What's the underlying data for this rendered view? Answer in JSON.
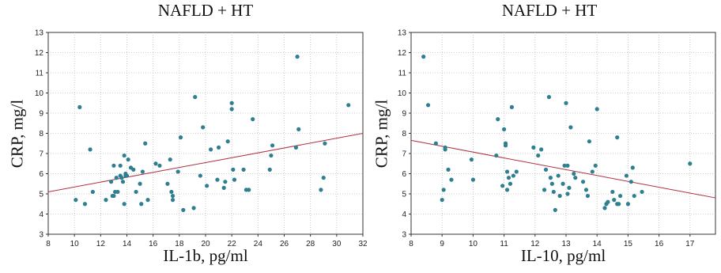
{
  "chart_data": [
    {
      "type": "scatter",
      "title": "NAFLD + HT",
      "xlabel": "IL-1b, pg/ml",
      "ylabel": "CRP, mg/l",
      "xlim": [
        8,
        32
      ],
      "ylim": [
        3,
        13
      ],
      "xticks": [
        8,
        10,
        12,
        14,
        16,
        18,
        20,
        22,
        24,
        26,
        28,
        30,
        32
      ],
      "yticks": [
        3,
        4,
        5,
        6,
        7,
        8,
        9,
        10,
        11,
        12,
        13
      ],
      "grid": "dotted",
      "point_color": "#2e7f8f",
      "trend_color": "#b03040",
      "trendline": {
        "x": [
          8,
          32
        ],
        "y": [
          5.1,
          8.0
        ]
      },
      "x": [
        10.1,
        10.4,
        10.8,
        11.2,
        11.4,
        12.4,
        12.8,
        12.9,
        13.0,
        13.0,
        13.1,
        13.2,
        13.3,
        13.5,
        13.5,
        13.6,
        13.7,
        13.8,
        13.8,
        13.9,
        13.9,
        14.0,
        14.1,
        14.3,
        14.5,
        14.7,
        15.0,
        15.1,
        15.2,
        15.4,
        15.6,
        16.2,
        16.5,
        17.1,
        17.3,
        17.4,
        17.5,
        17.5,
        17.9,
        18.1,
        18.3,
        19.1,
        19.2,
        19.6,
        19.8,
        20.1,
        20.4,
        20.9,
        21.0,
        21.4,
        21.5,
        21.7,
        22.0,
        22.0,
        22.1,
        22.2,
        22.9,
        23.1,
        23.3,
        23.6,
        24.9,
        25.0,
        25.1,
        26.9,
        27.0,
        27.1,
        28.8,
        29.0,
        29.1,
        30.9
      ],
      "y": [
        4.7,
        9.3,
        4.5,
        7.2,
        5.1,
        4.7,
        5.6,
        4.9,
        6.4,
        4.9,
        5.1,
        5.8,
        5.1,
        6.4,
        5.9,
        5.8,
        5.6,
        6.9,
        4.5,
        5.9,
        6.0,
        5.9,
        6.7,
        6.3,
        6.2,
        5.1,
        5.5,
        4.5,
        6.1,
        7.5,
        4.7,
        6.5,
        6.4,
        5.5,
        6.7,
        5.1,
        4.9,
        4.7,
        6.1,
        7.8,
        4.2,
        4.3,
        9.8,
        5.9,
        8.3,
        5.4,
        7.2,
        5.7,
        7.3,
        5.3,
        5.6,
        7.6,
        9.5,
        9.2,
        6.2,
        5.7,
        6.2,
        5.2,
        5.2,
        8.7,
        6.2,
        6.9,
        7.4,
        7.3,
        11.8,
        8.2,
        5.2,
        5.8,
        7.5,
        9.4
      ]
    },
    {
      "type": "scatter",
      "title": "NAFLD + HT",
      "xlabel": "IL-10, pg/ml",
      "ylabel": "CRP, mg/l",
      "xlim": [
        8,
        18
      ],
      "ylim": [
        3,
        13
      ],
      "xticks": [
        8,
        9,
        10,
        11,
        12,
        13,
        14,
        15,
        16,
        17
      ],
      "yticks": [
        3,
        4,
        5,
        6,
        7,
        8,
        9,
        10,
        11,
        12,
        13
      ],
      "grid": "dotted",
      "point_color": "#2e7f8f",
      "trend_color": "#b03040",
      "trendline": {
        "x": [
          8,
          18
        ],
        "y": [
          7.65,
          4.75
        ]
      },
      "x": [
        8.4,
        8.55,
        8.8,
        9.0,
        9.05,
        9.1,
        9.1,
        9.2,
        9.3,
        9.95,
        10.0,
        10.75,
        10.8,
        10.95,
        11.0,
        11.05,
        11.05,
        11.1,
        11.1,
        11.15,
        11.2,
        11.25,
        11.3,
        11.4,
        11.95,
        12.1,
        12.2,
        12.3,
        12.35,
        12.45,
        12.5,
        12.55,
        12.6,
        12.65,
        12.75,
        12.8,
        12.9,
        12.95,
        13.0,
        13.05,
        13.05,
        13.1,
        13.15,
        13.25,
        13.3,
        13.55,
        13.65,
        13.7,
        13.75,
        13.85,
        13.95,
        14.0,
        14.25,
        14.3,
        14.35,
        14.5,
        14.55,
        14.65,
        14.65,
        14.7,
        14.75,
        14.95,
        15.0,
        15.1,
        15.15,
        15.2,
        15.45,
        17.0
      ],
      "y": [
        11.8,
        9.4,
        7.5,
        4.7,
        5.2,
        7.3,
        7.2,
        6.2,
        5.7,
        6.7,
        5.7,
        6.9,
        8.7,
        5.4,
        8.2,
        7.5,
        7.4,
        5.2,
        6.1,
        5.8,
        5.5,
        9.3,
        5.9,
        6.1,
        7.3,
        6.9,
        7.2,
        5.2,
        6.2,
        9.8,
        5.8,
        5.5,
        5.1,
        4.2,
        5.9,
        4.9,
        5.5,
        6.4,
        9.5,
        6.4,
        5.0,
        5.3,
        8.3,
        6.0,
        5.8,
        5.6,
        5.2,
        4.9,
        7.6,
        6.1,
        6.4,
        9.2,
        4.3,
        4.5,
        4.6,
        5.1,
        4.7,
        7.8,
        4.5,
        4.5,
        4.9,
        5.9,
        4.5,
        5.6,
        6.3,
        4.9,
        5.1,
        6.5
      ]
    }
  ]
}
